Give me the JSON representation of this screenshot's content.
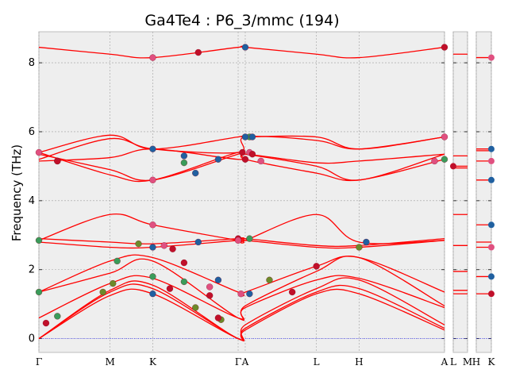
{
  "chart_data": {
    "type": "line",
    "title": "Ga4Te4 : P6_3/mmc (194)",
    "ylabel": "Frequency (THz)",
    "ylim": [
      -0.4,
      8.9
    ],
    "yticks": [
      0,
      2,
      4,
      6,
      8
    ],
    "grid": true,
    "segments": [
      {
        "labels": [
          "Γ",
          "M",
          "K",
          "Γ",
          "A",
          "L",
          "H",
          "A"
        ],
        "k": [
          0,
          0.5,
          0.8,
          1.4,
          1.45,
          1.95,
          2.25,
          2.85
        ]
      },
      {
        "labels": [
          "L",
          "M"
        ],
        "k": [
          0,
          1
        ]
      },
      {
        "labels": [
          "H",
          "K"
        ],
        "k": [
          0,
          1
        ]
      }
    ],
    "bands": [
      {
        "name": "b1",
        "values": [
          0,
          1.25,
          1.3,
          0,
          0.25,
          1.3,
          1.3,
          0.25
        ]
      },
      {
        "name": "b2",
        "values": [
          0,
          1.35,
          1.45,
          0,
          0.3,
          1.35,
          1.45,
          0.3
        ]
      },
      {
        "name": "b3",
        "values": [
          0,
          1.4,
          1.55,
          0,
          0.4,
          1.45,
          1.7,
          0.4
        ]
      },
      {
        "name": "b4",
        "values": [
          0.6,
          1.6,
          1.75,
          0.6,
          0.9,
          1.7,
          1.75,
          0.9
        ]
      },
      {
        "name": "b5",
        "values": [
          1.35,
          1.9,
          2.25,
          0.6,
          0.95,
          1.95,
          2.35,
          0.95
        ]
      },
      {
        "name": "b6",
        "values": [
          1.35,
          2.25,
          2.35,
          1.35,
          1.35,
          2.1,
          2.35,
          1.35
        ]
      },
      {
        "name": "b7",
        "values": [
          2.8,
          2.65,
          2.65,
          2.85,
          2.85,
          2.65,
          2.65,
          2.85
        ]
      },
      {
        "name": "b8",
        "values": [
          2.9,
          2.8,
          2.75,
          2.9,
          2.9,
          2.7,
          2.7,
          2.9
        ]
      },
      {
        "name": "b9",
        "values": [
          2.85,
          3.6,
          3.3,
          2.85,
          2.85,
          3.6,
          2.8,
          2.85
        ]
      },
      {
        "name": "b10",
        "values": [
          5.4,
          4.75,
          4.6,
          5.4,
          5.2,
          4.8,
          4.6,
          5.2
        ]
      },
      {
        "name": "b11",
        "values": [
          5.35,
          4.9,
          4.6,
          5.35,
          5.35,
          5.0,
          4.6,
          5.35
        ]
      },
      {
        "name": "b12",
        "values": [
          5.15,
          5.25,
          5.5,
          5.2,
          5.35,
          5.1,
          5.15,
          5.35
        ]
      },
      {
        "name": "b13",
        "values": [
          5.2,
          5.8,
          5.5,
          5.4,
          5.85,
          5.75,
          5.5,
          5.85
        ]
      },
      {
        "name": "b14",
        "values": [
          5.4,
          5.9,
          5.5,
          5.85,
          5.85,
          5.85,
          5.5,
          5.85
        ]
      },
      {
        "name": "b15",
        "values": [
          8.45,
          8.25,
          8.15,
          8.45,
          8.45,
          8.25,
          8.15,
          8.45
        ]
      }
    ],
    "side_levels_LM": [
      8.25,
      5.3,
      5.0,
      4.95,
      3.6,
      2.7,
      1.95,
      1.4,
      1.3
    ],
    "side_levels_HK": [
      8.15,
      5.5,
      5.45,
      5.15,
      4.6,
      3.3,
      2.8,
      2.65,
      1.8,
      1.3
    ],
    "markers": [
      {
        "k": 0.0,
        "y": 5.4,
        "c": "#e05080"
      },
      {
        "k": 0.0,
        "y": 2.85,
        "c": "#3a9b5a"
      },
      {
        "k": 0.0,
        "y": 1.35,
        "c": "#3a9b5a"
      },
      {
        "k": 0.05,
        "y": 0.45,
        "c": "#c0102a"
      },
      {
        "k": 0.13,
        "y": 5.15,
        "c": "#3a9b5a"
      },
      {
        "k": 0.13,
        "y": 0.65,
        "c": "#3a9b5a"
      },
      {
        "k": 0.13,
        "y": 5.15,
        "c": "#c0102a"
      },
      {
        "k": 0.45,
        "y": 1.35,
        "c": "#6b8a2a"
      },
      {
        "k": 0.52,
        "y": 1.6,
        "c": "#6b8a2a"
      },
      {
        "k": 0.55,
        "y": 2.25,
        "c": "#3a9b5a"
      },
      {
        "k": 0.7,
        "y": 2.75,
        "c": "#6b8a2a"
      },
      {
        "k": 0.8,
        "y": 8.15,
        "c": "#e05080"
      },
      {
        "k": 0.8,
        "y": 5.5,
        "c": "#2060a0"
      },
      {
        "k": 0.8,
        "y": 4.6,
        "c": "#e05080"
      },
      {
        "k": 0.8,
        "y": 3.3,
        "c": "#e05080"
      },
      {
        "k": 0.8,
        "y": 2.65,
        "c": "#2060a0"
      },
      {
        "k": 0.8,
        "y": 1.8,
        "c": "#3a9b5a"
      },
      {
        "k": 0.8,
        "y": 1.3,
        "c": "#2060a0"
      },
      {
        "k": 0.92,
        "y": 1.45,
        "c": "#c0102a"
      },
      {
        "k": 0.94,
        "y": 2.6,
        "c": "#c0102a"
      },
      {
        "k": 0.88,
        "y": 2.7,
        "c": "#e05080"
      },
      {
        "k": 1.02,
        "y": 2.2,
        "c": "#c0102a"
      },
      {
        "k": 1.02,
        "y": 1.65,
        "c": "#3a9b5a"
      },
      {
        "k": 1.1,
        "y": 0.9,
        "c": "#6b8a2a"
      },
      {
        "k": 1.1,
        "y": 4.8,
        "c": "#2060a0"
      },
      {
        "k": 1.12,
        "y": 8.3,
        "c": "#c0102a"
      },
      {
        "k": 1.12,
        "y": 2.8,
        "c": "#2060a0"
      },
      {
        "k": 1.02,
        "y": 5.3,
        "c": "#2060a0"
      },
      {
        "k": 1.02,
        "y": 5.1,
        "c": "#3a9b5a"
      },
      {
        "k": 1.2,
        "y": 1.25,
        "c": "#c0102a"
      },
      {
        "k": 1.2,
        "y": 1.5,
        "c": "#e05080"
      },
      {
        "k": 1.26,
        "y": 1.7,
        "c": "#2060a0"
      },
      {
        "k": 1.26,
        "y": 5.2,
        "c": "#2060a0"
      },
      {
        "k": 1.28,
        "y": 0.55,
        "c": "#6b8a2a"
      },
      {
        "k": 1.26,
        "y": 0.6,
        "c": "#c0102a"
      },
      {
        "k": 1.4,
        "y": 2.9,
        "c": "#c0102a"
      },
      {
        "k": 1.4,
        "y": 2.85,
        "c": "#e05080"
      },
      {
        "k": 1.42,
        "y": 1.3,
        "c": "#e05080"
      },
      {
        "k": 1.43,
        "y": 5.4,
        "c": "#c0102a"
      },
      {
        "k": 1.48,
        "y": 5.85,
        "c": "#3a9b5a"
      },
      {
        "k": 1.48,
        "y": 5.4,
        "c": "#e05080"
      },
      {
        "k": 1.48,
        "y": 2.9,
        "c": "#3a9b5a"
      },
      {
        "k": 1.48,
        "y": 1.3,
        "c": "#2060a0"
      },
      {
        "k": 1.45,
        "y": 8.45,
        "c": "#2060a0"
      },
      {
        "k": 1.45,
        "y": 5.85,
        "c": "#2060a0"
      },
      {
        "k": 1.45,
        "y": 5.2,
        "c": "#c0102a"
      },
      {
        "k": 1.5,
        "y": 5.85,
        "c": "#2060a0"
      },
      {
        "k": 1.5,
        "y": 5.35,
        "c": "#c0102a"
      },
      {
        "k": 1.56,
        "y": 5.15,
        "c": "#e05080"
      },
      {
        "k": 1.62,
        "y": 1.7,
        "c": "#6b8a2a"
      },
      {
        "k": 1.78,
        "y": 1.35,
        "c": "#c0102a"
      },
      {
        "k": 1.95,
        "y": 2.1,
        "c": "#c0102a"
      },
      {
        "k": 2.25,
        "y": 2.65,
        "c": "#6b8a2a"
      },
      {
        "k": 2.3,
        "y": 2.8,
        "c": "#2060a0"
      },
      {
        "k": 2.78,
        "y": 5.15,
        "c": "#e05080"
      },
      {
        "k": 2.85,
        "y": 8.45,
        "c": "#c0102a"
      },
      {
        "k": 2.85,
        "y": 5.85,
        "c": "#e05080"
      },
      {
        "k": 2.85,
        "y": 5.2,
        "c": "#3a9b5a"
      }
    ],
    "side_markers_LM": [
      {
        "y": 5.0,
        "c": "#c0102a"
      }
    ],
    "side_markers_HK": [
      {
        "y": 8.15,
        "c": "#e05080"
      },
      {
        "y": 5.5,
        "c": "#2060a0"
      },
      {
        "y": 5.15,
        "c": "#e05080"
      },
      {
        "y": 4.6,
        "c": "#2060a0"
      },
      {
        "y": 3.3,
        "c": "#2060a0"
      },
      {
        "y": 2.65,
        "c": "#e05080"
      },
      {
        "y": 1.8,
        "c": "#2060a0"
      },
      {
        "y": 1.3,
        "c": "#c0102a"
      }
    ]
  }
}
